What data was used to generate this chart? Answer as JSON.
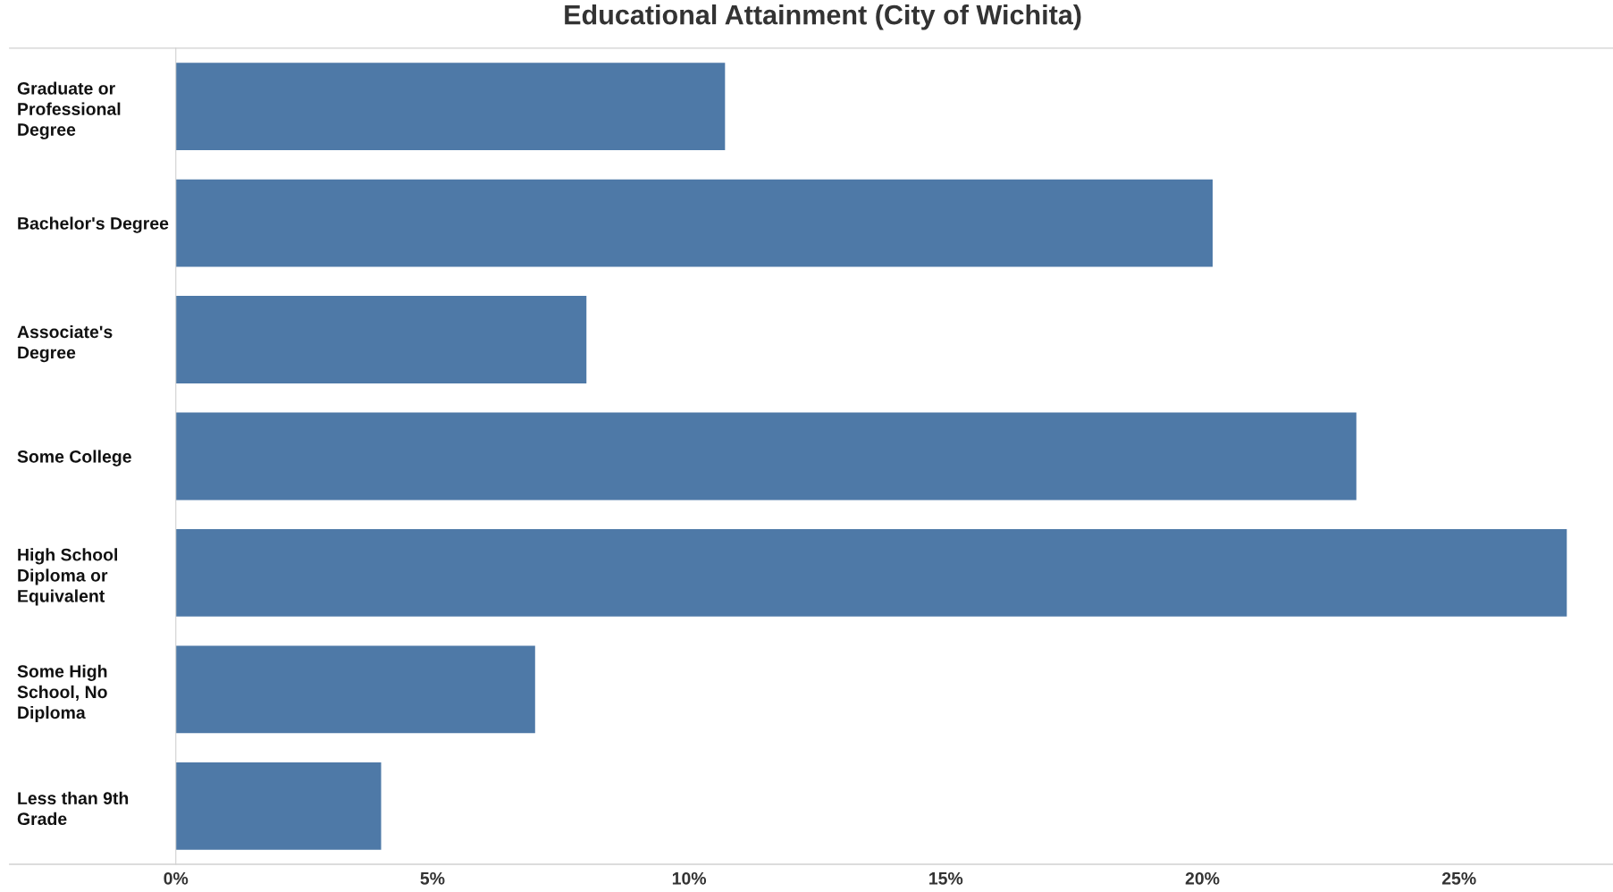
{
  "chart_data": {
    "type": "bar",
    "orientation": "horizontal",
    "title": "Educational Attainment (City of Wichita)",
    "categories": [
      "Graduate or\nProfessional\nDegree",
      "Bachelor's Degree",
      "Associate's\nDegree",
      "Some College",
      "High School\nDiploma or\nEquivalent",
      "Some High\nSchool, No\nDiploma",
      "Less than 9th\nGrade"
    ],
    "values": [
      10.7,
      20.2,
      8.0,
      23.0,
      27.1,
      7.0,
      4.0
    ],
    "color": "#4e79a7",
    "xlim": [
      0,
      28
    ],
    "xticks": [
      {
        "value": 0,
        "label": "0%"
      },
      {
        "value": 5,
        "label": "5%"
      },
      {
        "value": 10,
        "label": "10%"
      },
      {
        "value": 15,
        "label": "15%"
      },
      {
        "value": 20,
        "label": "20%"
      },
      {
        "value": 25,
        "label": "25%"
      }
    ],
    "grid": false,
    "legend": false
  }
}
